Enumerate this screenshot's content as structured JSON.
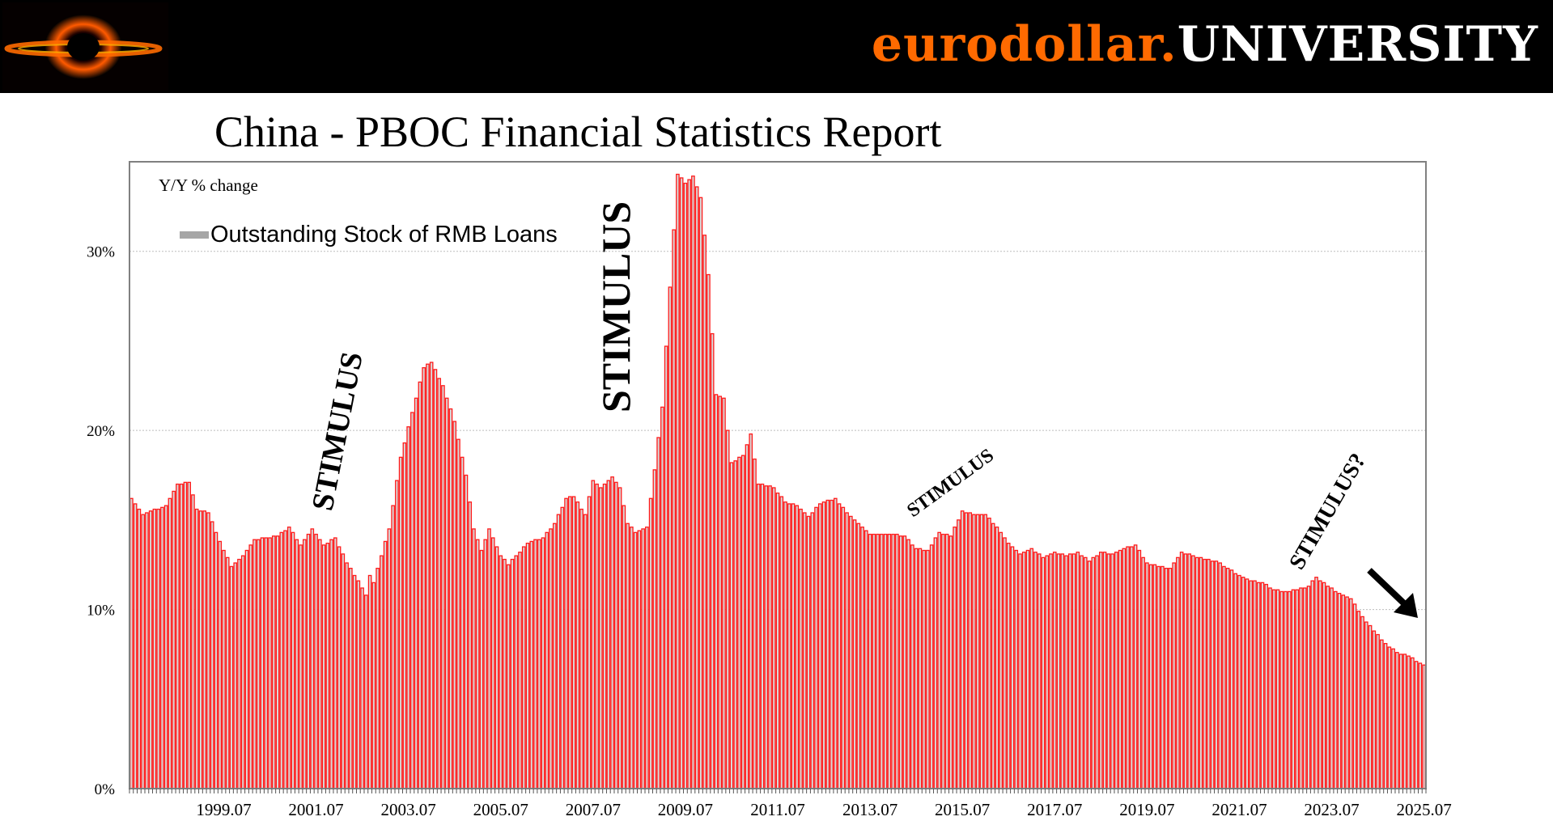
{
  "banner": {
    "brand_part1": "eurodollar.",
    "brand_part2": "UNIVERSITY",
    "brand_color": "#ff6a00"
  },
  "chart_data": {
    "type": "bar",
    "title": "China - PBOC Financial Statistics Report",
    "ylabel": "Y/Y % change",
    "series": [
      {
        "name": "Outstanding Stock of RMB Loans",
        "color": "#ff1a1a",
        "legend_color": "#a6a6a6"
      }
    ],
    "ylim": [
      0,
      35
    ],
    "y_ticks": [
      {
        "value": 0,
        "label": "0%"
      },
      {
        "value": 10,
        "label": "10%"
      },
      {
        "value": 20,
        "label": "20%"
      },
      {
        "value": 30,
        "label": "30%"
      }
    ],
    "x_tick_labels": [
      "1999.07",
      "2001.07",
      "2003.07",
      "2005.07",
      "2007.07",
      "2009.07",
      "2011.07",
      "2013.07",
      "2015.07",
      "2017.07",
      "2019.07",
      "2021.07",
      "2023.07",
      "2025.07"
    ],
    "x_start": "1997.07",
    "x_end": "2025.07",
    "frequency": "monthly",
    "grid": "horizontal dotted",
    "legend_position": "top-left",
    "anchors": [
      [
        "1997.07",
        16.2
      ],
      [
        "1997.10",
        15.3
      ],
      [
        "1998.04",
        15.8
      ],
      [
        "1998.07",
        17.0
      ],
      [
        "1998.10",
        17.1
      ],
      [
        "1998.12",
        15.6
      ],
      [
        "1999.03",
        15.4
      ],
      [
        "1999.06",
        13.8
      ],
      [
        "1999.09",
        12.4
      ],
      [
        "1999.12",
        13.0
      ],
      [
        "2000.03",
        13.9
      ],
      [
        "2000.06",
        14.0
      ],
      [
        "2000.09",
        14.1
      ],
      [
        "2000.12",
        14.6
      ],
      [
        "2001.03",
        13.6
      ],
      [
        "2001.06",
        14.5
      ],
      [
        "2001.09",
        13.6
      ],
      [
        "2001.12",
        14.0
      ],
      [
        "2002.03",
        12.6
      ],
      [
        "2002.06",
        11.6
      ],
      [
        "2002.08",
        10.8
      ],
      [
        "2002.09",
        11.9
      ],
      [
        "2002.10",
        11.5
      ],
      [
        "2002.11",
        12.3
      ],
      [
        "2003.02",
        14.5
      ],
      [
        "2003.05",
        18.5
      ],
      [
        "2003.08",
        21.0
      ],
      [
        "2003.11",
        23.5
      ],
      [
        "2004.01",
        23.8
      ],
      [
        "2004.04",
        22.5
      ],
      [
        "2004.07",
        20.5
      ],
      [
        "2004.10",
        17.5
      ],
      [
        "2004.12",
        14.5
      ],
      [
        "2005.02",
        13.3
      ],
      [
        "2005.04",
        14.5
      ],
      [
        "2005.07",
        13.0
      ],
      [
        "2005.09",
        12.5
      ],
      [
        "2005.11",
        13.0
      ],
      [
        "2006.02",
        13.7
      ],
      [
        "2006.06",
        14.0
      ],
      [
        "2006.09",
        14.8
      ],
      [
        "2006.12",
        16.2
      ],
      [
        "2007.02",
        16.3
      ],
      [
        "2007.05",
        15.3
      ],
      [
        "2007.07",
        17.2
      ],
      [
        "2007.09",
        16.8
      ],
      [
        "2007.12",
        17.4
      ],
      [
        "2008.02",
        16.8
      ],
      [
        "2008.04",
        14.8
      ],
      [
        "2008.06",
        14.3
      ],
      [
        "2008.09",
        14.6
      ],
      [
        "2008.11",
        17.8
      ],
      [
        "2009.01",
        21.3
      ],
      [
        "2009.03",
        28.0
      ],
      [
        "2009.05",
        34.3
      ],
      [
        "2009.07",
        33.8
      ],
      [
        "2009.09",
        34.2
      ],
      [
        "2009.11",
        33.0
      ],
      [
        "2010.01",
        28.7
      ],
      [
        "2010.03",
        22.0
      ],
      [
        "2010.05",
        21.8
      ],
      [
        "2010.07",
        18.2
      ],
      [
        "2010.10",
        18.6
      ],
      [
        "2010.12",
        19.8
      ],
      [
        "2011.02",
        17.0
      ],
      [
        "2011.06",
        16.8
      ],
      [
        "2011.09",
        16.0
      ],
      [
        "2011.12",
        15.8
      ],
      [
        "2012.03",
        15.2
      ],
      [
        "2012.06",
        15.9
      ],
      [
        "2012.10",
        16.2
      ],
      [
        "2013.01",
        15.4
      ],
      [
        "2013.04",
        14.8
      ],
      [
        "2013.07",
        14.2
      ],
      [
        "2013.12",
        14.2
      ],
      [
        "2014.04",
        14.1
      ],
      [
        "2014.07",
        13.4
      ],
      [
        "2014.10",
        13.3
      ],
      [
        "2015.01",
        14.3
      ],
      [
        "2015.04",
        14.1
      ],
      [
        "2015.07",
        15.5
      ],
      [
        "2015.10",
        15.3
      ],
      [
        "2016.01",
        15.3
      ],
      [
        "2016.04",
        14.6
      ],
      [
        "2016.07",
        13.7
      ],
      [
        "2016.10",
        13.1
      ],
      [
        "2017.01",
        13.4
      ],
      [
        "2017.04",
        12.9
      ],
      [
        "2017.07",
        13.2
      ],
      [
        "2017.10",
        13.0
      ],
      [
        "2018.01",
        13.2
      ],
      [
        "2018.04",
        12.7
      ],
      [
        "2018.07",
        13.2
      ],
      [
        "2018.10",
        13.1
      ],
      [
        "2019.01",
        13.4
      ],
      [
        "2019.04",
        13.6
      ],
      [
        "2019.07",
        12.6
      ],
      [
        "2019.10",
        12.4
      ],
      [
        "2020.01",
        12.3
      ],
      [
        "2020.04",
        13.2
      ],
      [
        "2020.07",
        13.0
      ],
      [
        "2020.10",
        12.8
      ],
      [
        "2021.01",
        12.7
      ],
      [
        "2021.04",
        12.3
      ],
      [
        "2021.07",
        11.9
      ],
      [
        "2021.10",
        11.6
      ],
      [
        "2022.01",
        11.5
      ],
      [
        "2022.04",
        11.1
      ],
      [
        "2022.07",
        11.0
      ],
      [
        "2022.10",
        11.1
      ],
      [
        "2023.01",
        11.3
      ],
      [
        "2023.03",
        11.8
      ],
      [
        "2023.06",
        11.3
      ],
      [
        "2023.09",
        10.9
      ],
      [
        "2023.12",
        10.6
      ],
      [
        "2024.03",
        9.6
      ],
      [
        "2024.06",
        8.8
      ],
      [
        "2024.09",
        8.1
      ],
      [
        "2024.12",
        7.6
      ],
      [
        "2025.03",
        7.4
      ],
      [
        "2025.05",
        7.1
      ],
      [
        "2025.07",
        6.9
      ]
    ],
    "annotations": [
      {
        "text": "STIMULUS",
        "near": "2002.07"
      },
      {
        "text": "STIMULUS",
        "near": "2008.07"
      },
      {
        "text": "STIMULUS",
        "near": "2014.07"
      },
      {
        "text": "STIMULUS?",
        "near": "2023.01"
      }
    ]
  }
}
